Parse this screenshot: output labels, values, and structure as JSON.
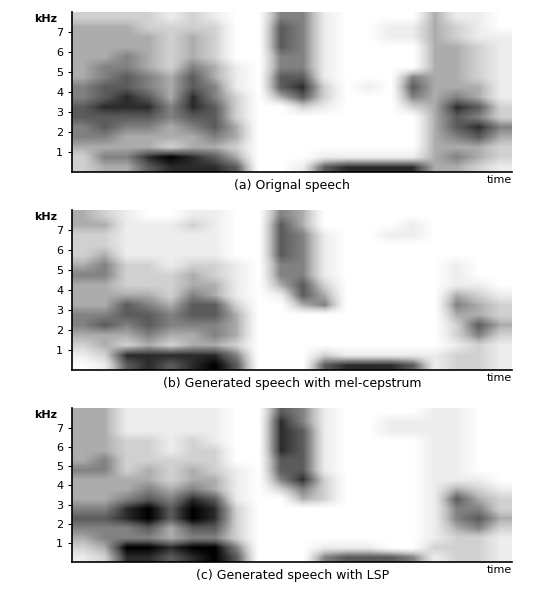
{
  "chart_data": [
    {
      "type": "heatmap",
      "title": "(a) Orignal speech",
      "x_label": "time",
      "y_label": "kHz",
      "ylim": [
        0,
        8
      ],
      "yticks": [
        1,
        2,
        3,
        4,
        5,
        6,
        7
      ],
      "tick_labels": "y",
      "cells": [
        [
          2,
          2,
          3,
          4,
          4,
          5,
          5,
          4,
          4,
          3,
          3,
          3,
          3,
          3,
          3,
          2
        ],
        [
          3,
          4,
          3,
          4,
          5,
          5,
          6,
          5,
          5,
          4,
          4,
          3,
          3,
          3,
          3,
          2
        ],
        [
          3,
          4,
          3,
          3,
          4,
          5,
          6,
          6,
          5,
          5,
          4,
          4,
          3,
          3,
          3,
          2
        ],
        [
          5,
          6,
          3,
          3,
          4,
          5,
          6,
          5,
          4,
          4,
          3,
          3,
          3,
          3,
          2,
          2
        ],
        [
          6,
          7,
          2,
          3,
          3,
          4,
          4,
          3,
          3,
          3,
          2,
          2,
          2,
          2,
          2,
          1
        ],
        [
          6,
          6,
          3,
          3,
          4,
          5,
          6,
          6,
          5,
          5,
          4,
          3,
          3,
          3,
          2,
          2
        ],
        [
          6,
          5,
          3,
          4,
          5,
          5,
          5,
          4,
          4,
          3,
          3,
          2,
          2,
          2,
          2,
          1
        ],
        [
          5,
          3,
          2,
          3,
          3,
          2,
          2,
          2,
          1,
          1,
          1,
          0,
          0,
          0,
          0,
          0
        ],
        [
          0,
          0,
          0,
          0,
          0,
          0,
          0,
          0,
          0,
          0,
          0,
          0,
          0,
          0,
          0,
          0
        ],
        [
          0,
          0,
          0,
          0,
          0,
          0,
          0,
          3,
          5,
          5,
          4,
          4,
          5,
          5,
          5,
          4
        ],
        [
          1,
          0,
          0,
          0,
          0,
          0,
          2,
          5,
          6,
          5,
          4,
          4,
          4,
          4,
          4,
          4
        ],
        [
          5,
          1,
          0,
          0,
          0,
          0,
          1,
          2,
          2,
          1,
          1,
          1,
          1,
          1,
          1,
          1
        ],
        [
          6,
          1,
          0,
          0,
          0,
          0,
          0,
          0,
          0,
          0,
          0,
          0,
          0,
          0,
          0,
          0
        ],
        [
          6,
          1,
          0,
          0,
          0,
          0,
          0,
          0,
          1,
          0,
          0,
          0,
          0,
          0,
          0,
          0
        ],
        [
          6,
          1,
          0,
          0,
          0,
          0,
          0,
          0,
          0,
          0,
          0,
          0,
          0,
          1,
          1,
          0
        ],
        [
          6,
          1,
          0,
          0,
          0,
          0,
          2,
          4,
          5,
          4,
          0,
          0,
          0,
          1,
          1,
          0
        ],
        [
          3,
          3,
          3,
          3,
          3,
          3,
          3,
          3,
          3,
          3,
          3,
          3,
          3,
          3,
          3,
          3
        ],
        [
          3,
          4,
          3,
          4,
          5,
          5,
          6,
          4,
          3,
          3,
          3,
          3,
          3,
          2,
          2,
          1
        ],
        [
          2,
          3,
          3,
          5,
          6,
          4,
          5,
          3,
          3,
          2,
          2,
          2,
          2,
          1,
          1,
          1
        ],
        [
          1,
          2,
          2,
          3,
          4,
          2,
          2,
          1,
          1,
          1,
          1,
          1,
          1,
          1,
          0,
          0
        ]
      ]
    },
    {
      "type": "heatmap",
      "title": "(b) Generated speech with mel-cepstrum",
      "x_label": "time",
      "y_label": "kHz",
      "ylim": [
        0,
        8
      ],
      "yticks": [
        1,
        2,
        3,
        4,
        5,
        6,
        7
      ],
      "tick_labels": "y",
      "cells": [
        [
          0,
          1,
          2,
          3,
          4,
          4,
          3,
          3,
          3,
          4,
          3,
          2,
          2,
          2,
          3,
          3
        ],
        [
          1,
          2,
          3,
          3,
          5,
          4,
          3,
          3,
          3,
          4,
          4,
          3,
          2,
          2,
          3,
          2
        ],
        [
          5,
          6,
          2,
          3,
          4,
          5,
          5,
          3,
          2,
          2,
          2,
          1,
          1,
          1,
          1,
          1
        ],
        [
          6,
          6,
          3,
          4,
          5,
          5,
          4,
          3,
          2,
          2,
          2,
          1,
          1,
          1,
          1,
          0
        ],
        [
          5,
          6,
          2,
          3,
          4,
          4,
          3,
          2,
          2,
          2,
          1,
          1,
          1,
          1,
          1,
          0
        ],
        [
          6,
          6,
          3,
          3,
          4,
          5,
          5,
          4,
          3,
          3,
          2,
          1,
          1,
          1,
          2,
          1
        ],
        [
          7,
          6,
          3,
          4,
          4,
          5,
          5,
          3,
          3,
          2,
          2,
          1,
          1,
          1,
          1,
          1
        ],
        [
          5,
          4,
          2,
          3,
          3,
          3,
          2,
          1,
          1,
          1,
          1,
          0,
          0,
          0,
          0,
          0
        ],
        [
          0,
          0,
          0,
          0,
          0,
          0,
          0,
          0,
          0,
          0,
          0,
          0,
          0,
          0,
          0,
          0
        ],
        [
          0,
          0,
          0,
          0,
          0,
          0,
          0,
          1,
          3,
          4,
          4,
          5,
          5,
          5,
          5,
          4
        ],
        [
          0,
          0,
          0,
          0,
          0,
          0,
          3,
          5,
          5,
          4,
          4,
          4,
          4,
          4,
          3,
          3
        ],
        [
          5,
          2,
          0,
          0,
          0,
          0,
          4,
          3,
          2,
          1,
          1,
          1,
          1,
          1,
          0,
          0
        ],
        [
          6,
          1,
          0,
          0,
          0,
          0,
          0,
          0,
          0,
          0,
          0,
          0,
          0,
          0,
          0,
          0
        ],
        [
          6,
          1,
          0,
          0,
          0,
          0,
          0,
          0,
          0,
          0,
          0,
          0,
          0,
          0,
          0,
          0
        ],
        [
          6,
          1,
          0,
          0,
          0,
          0,
          0,
          0,
          0,
          0,
          0,
          0,
          0,
          1,
          0,
          0
        ],
        [
          5,
          1,
          0,
          0,
          0,
          0,
          0,
          0,
          0,
          0,
          0,
          0,
          0,
          1,
          1,
          0
        ],
        [
          1,
          1,
          0,
          0,
          0,
          0,
          0,
          0,
          0,
          0,
          0,
          0,
          0,
          0,
          0,
          0
        ],
        [
          2,
          2,
          1,
          2,
          2,
          3,
          4,
          3,
          1,
          1,
          1,
          0,
          0,
          0,
          0,
          0
        ],
        [
          2,
          2,
          2,
          4,
          5,
          3,
          3,
          2,
          1,
          0,
          0,
          0,
          0,
          0,
          0,
          0
        ],
        [
          1,
          1,
          1,
          2,
          3,
          2,
          2,
          1,
          0,
          0,
          0,
          0,
          0,
          0,
          0,
          0
        ]
      ]
    },
    {
      "type": "heatmap",
      "title": "(c) Generated speech with LSP",
      "x_label": "time",
      "y_label": "kHz",
      "ylim": [
        0,
        8
      ],
      "yticks": [
        1,
        2,
        3,
        4,
        5,
        6,
        7
      ],
      "tick_labels": "y",
      "cells": [
        [
          1,
          2,
          3,
          4,
          5,
          4,
          3,
          3,
          3,
          4,
          3,
          3,
          3,
          3,
          3,
          3
        ],
        [
          2,
          3,
          4,
          4,
          5,
          4,
          3,
          3,
          3,
          4,
          4,
          3,
          3,
          3,
          3,
          3
        ],
        [
          6,
          7,
          4,
          4,
          6,
          6,
          4,
          3,
          3,
          2,
          2,
          2,
          2,
          1,
          1,
          1
        ],
        [
          6,
          7,
          4,
          5,
          7,
          7,
          5,
          4,
          3,
          3,
          2,
          2,
          2,
          1,
          1,
          1
        ],
        [
          5,
          6,
          3,
          3,
          5,
          5,
          4,
          3,
          2,
          2,
          2,
          1,
          1,
          1,
          1,
          1
        ],
        [
          6,
          7,
          4,
          5,
          7,
          7,
          6,
          4,
          3,
          3,
          2,
          2,
          2,
          1,
          1,
          1
        ],
        [
          7,
          7,
          4,
          5,
          6,
          6,
          5,
          3,
          3,
          2,
          2,
          2,
          1,
          1,
          1,
          1
        ],
        [
          5,
          4,
          2,
          2,
          2,
          2,
          1,
          1,
          1,
          1,
          0,
          0,
          0,
          0,
          0,
          0
        ],
        [
          0,
          0,
          0,
          0,
          0,
          0,
          0,
          0,
          0,
          0,
          0,
          0,
          0,
          0,
          0,
          0
        ],
        [
          0,
          0,
          0,
          0,
          0,
          0,
          0,
          2,
          4,
          5,
          5,
          6,
          6,
          6,
          6,
          5
        ],
        [
          0,
          0,
          0,
          0,
          0,
          0,
          3,
          4,
          6,
          5,
          5,
          5,
          5,
          5,
          4,
          4
        ],
        [
          4,
          1,
          0,
          0,
          0,
          0,
          2,
          2,
          2,
          1,
          1,
          1,
          1,
          1,
          1,
          1
        ],
        [
          5,
          1,
          0,
          0,
          0,
          0,
          0,
          0,
          0,
          0,
          0,
          0,
          0,
          0,
          0,
          0
        ],
        [
          5,
          1,
          0,
          0,
          0,
          0,
          0,
          0,
          0,
          0,
          0,
          0,
          0,
          0,
          0,
          0
        ],
        [
          5,
          0,
          0,
          0,
          0,
          0,
          0,
          0,
          0,
          0,
          0,
          0,
          0,
          1,
          1,
          0
        ],
        [
          4,
          0,
          0,
          0,
          0,
          0,
          0,
          0,
          0,
          0,
          0,
          0,
          0,
          1,
          1,
          0
        ],
        [
          1,
          2,
          1,
          1,
          1,
          1,
          1,
          1,
          1,
          1,
          1,
          1,
          1,
          1,
          1,
          1
        ],
        [
          2,
          2,
          2,
          3,
          4,
          4,
          5,
          3,
          1,
          1,
          1,
          1,
          1,
          1,
          1,
          1
        ],
        [
          2,
          2,
          2,
          4,
          5,
          4,
          3,
          2,
          1,
          0,
          0,
          0,
          0,
          0,
          0,
          0
        ],
        [
          1,
          1,
          1,
          2,
          3,
          2,
          2,
          1,
          0,
          0,
          0,
          0,
          0,
          0,
          0,
          0
        ]
      ]
    }
  ]
}
